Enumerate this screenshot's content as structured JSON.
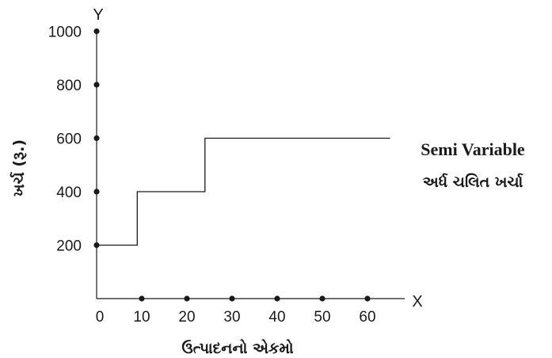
{
  "chart_data": {
    "type": "line",
    "step": true,
    "xlabel": "ઉત્પાદનનો એકમો",
    "ylabel": "ખર્ચ (રૂ.)",
    "x_axis_letter": "X",
    "y_axis_letter": "Y",
    "xlim": [
      0,
      65
    ],
    "ylim": [
      0,
      1100
    ],
    "x_ticks": [
      0,
      10,
      20,
      30,
      40,
      50,
      60
    ],
    "y_ticks": [
      200,
      400,
      600,
      800,
      1000
    ],
    "x_tick_labels": [
      "0",
      "10",
      "20",
      "30",
      "40",
      "50",
      "60"
    ],
    "y_tick_labels": [
      "200",
      "400",
      "600",
      "800",
      "1000"
    ],
    "grid": false,
    "series": [
      {
        "name": "Semi Variable",
        "name_gu": "અર્ધ ચલિત ખર્ચા",
        "x": [
          0,
          9,
          9,
          24,
          24,
          65
        ],
        "y": [
          200,
          200,
          400,
          400,
          600,
          600
        ]
      }
    ],
    "legend_position": "right",
    "colors": {
      "line": "#1a1a1a",
      "axis": "#1a1a1a",
      "tick_dot": "#1a1a1a"
    }
  }
}
